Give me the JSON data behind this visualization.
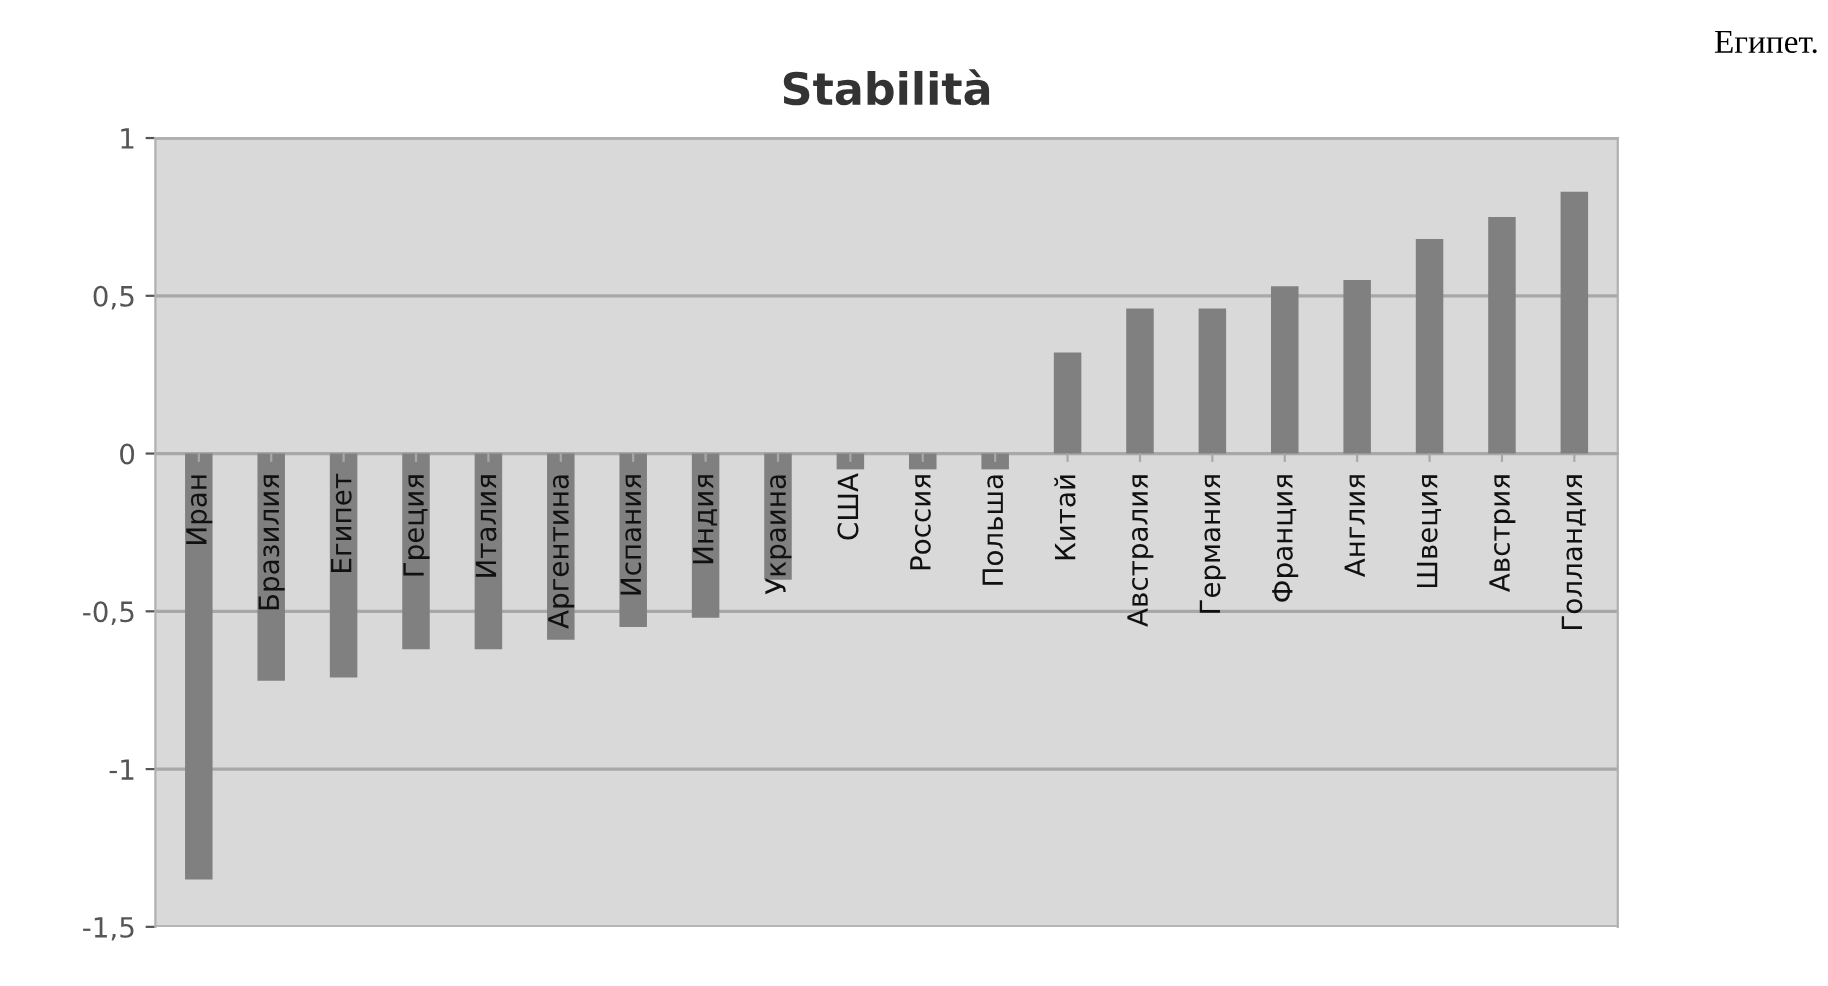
{
  "chart_data": {
    "type": "bar",
    "title": "Stabilità",
    "categories": [
      "Иран",
      "Бразилия",
      "Египет",
      "Греция",
      "Италия",
      "Аргентина",
      "Испания",
      "Индия",
      "Украина",
      "США",
      "Россия",
      "Польша",
      "Китай",
      "Австралия",
      "Германия",
      "Франция",
      "Англия",
      "Швеция",
      "Австрия",
      "Голландия"
    ],
    "values": [
      -1.35,
      -0.72,
      -0.71,
      -0.62,
      -0.62,
      -0.59,
      -0.55,
      -0.52,
      -0.4,
      -0.05,
      -0.05,
      -0.05,
      0.32,
      0.46,
      0.46,
      0.53,
      0.55,
      0.68,
      0.75,
      0.83
    ],
    "color": "#808080",
    "ylim": [
      -1.5,
      1
    ],
    "yticks": [
      {
        "value": -1.5,
        "label": "-1,5"
      },
      {
        "value": -1,
        "label": "-1"
      },
      {
        "value": -0.5,
        "label": "-0,5"
      },
      0,
      {
        "value": 0.5,
        "label": "0,5"
      },
      1
    ],
    "grid": "y",
    "annotations": [
      "Египет."
    ]
  }
}
